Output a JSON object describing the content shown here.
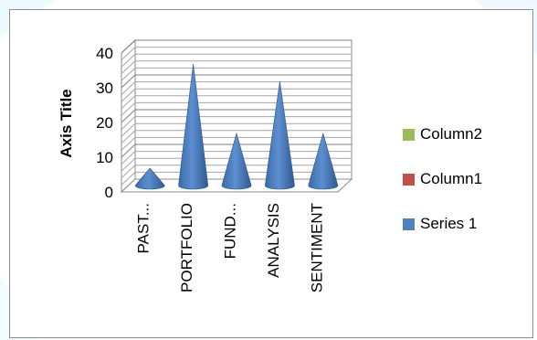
{
  "chart_data": {
    "type": "bar",
    "shape": "cone",
    "is_3d": true,
    "categories": [
      "PAST...",
      "PORTFOLIO",
      "FUND...",
      "ANALYSIS",
      "SENTIMENT"
    ],
    "series": [
      {
        "name": "Series 1",
        "values": [
          5,
          35,
          15,
          30,
          15
        ],
        "color": "#4f81bd"
      }
    ],
    "legend_entries": [
      {
        "name": "Column2",
        "color": "#9bbb59"
      },
      {
        "name": "Column1",
        "color": "#c0504d"
      },
      {
        "name": "Series 1",
        "color": "#4f81bd"
      }
    ],
    "ylabel": "Axis Title",
    "ylim": [
      0,
      40
    ],
    "yticks": [
      "0",
      "10",
      "20",
      "30",
      "40"
    ],
    "grid": true,
    "legend_position": "right"
  }
}
